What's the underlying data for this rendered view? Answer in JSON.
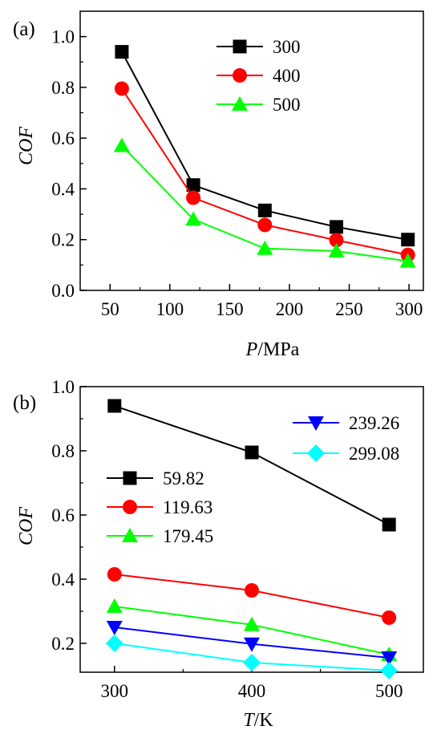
{
  "chart_data": [
    {
      "type": "line",
      "panel_label": "(a)",
      "xlabel_var": "P",
      "xlabel_unit": "/MPa",
      "ylabel": "COF",
      "xlim": [
        25,
        312
      ],
      "ylim": [
        0.0,
        1.1
      ],
      "xticks": [
        50,
        100,
        150,
        200,
        250,
        300
      ],
      "yticks": [
        0.0,
        0.2,
        0.4,
        0.6,
        0.8,
        1.0
      ],
      "x": [
        59.82,
        119.63,
        179.45,
        239.26,
        299.08
      ],
      "grid": false,
      "legend_position": "top-right",
      "series": [
        {
          "name": "300",
          "marker": "square",
          "color": "#000000",
          "values": [
            0.94,
            0.415,
            0.315,
            0.25,
            0.2
          ]
        },
        {
          "name": "400",
          "marker": "circle",
          "color": "#ff0000",
          "values": [
            0.795,
            0.365,
            0.258,
            0.198,
            0.14
          ]
        },
        {
          "name": "500",
          "marker": "triangle-up",
          "color": "#00ff00",
          "values": [
            0.57,
            0.28,
            0.165,
            0.155,
            0.115
          ]
        }
      ]
    },
    {
      "type": "line",
      "panel_label": "(b)",
      "xlabel_var": "T",
      "xlabel_unit": "/K",
      "ylabel": "COF",
      "xlim": [
        275,
        525
      ],
      "ylim": [
        0.11,
        1.0
      ],
      "xticks": [
        300,
        400,
        500
      ],
      "yticks": [
        0.2,
        0.4,
        0.6,
        0.8,
        1.0
      ],
      "x": [
        300,
        400,
        500
      ],
      "grid": false,
      "legend_position": "top-right and left",
      "series": [
        {
          "name": "59.82",
          "marker": "square",
          "color": "#000000",
          "values": [
            0.94,
            0.795,
            0.57
          ]
        },
        {
          "name": "119.63",
          "marker": "circle",
          "color": "#ff0000",
          "values": [
            0.415,
            0.365,
            0.28
          ]
        },
        {
          "name": "179.45",
          "marker": "triangle-up",
          "color": "#00ff00",
          "values": [
            0.315,
            0.258,
            0.165
          ]
        },
        {
          "name": "239.26",
          "marker": "triangle-down",
          "color": "#0000ff",
          "values": [
            0.25,
            0.198,
            0.155
          ]
        },
        {
          "name": "299.08",
          "marker": "diamond",
          "color": "#00ffff",
          "values": [
            0.2,
            0.14,
            0.115
          ]
        }
      ]
    }
  ]
}
